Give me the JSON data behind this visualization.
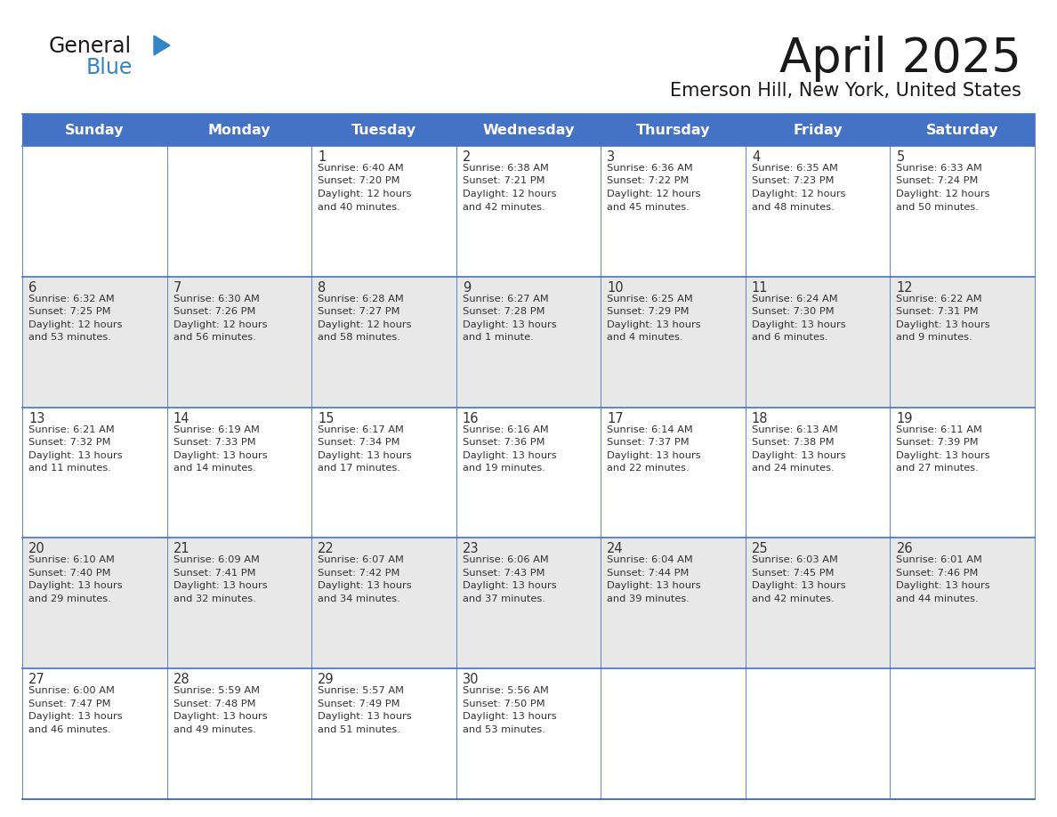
{
  "title": "April 2025",
  "subtitle": "Emerson Hill, New York, United States",
  "days_of_week": [
    "Sunday",
    "Monday",
    "Tuesday",
    "Wednesday",
    "Thursday",
    "Friday",
    "Saturday"
  ],
  "header_bg": "#4472C4",
  "header_text": "#FFFFFF",
  "odd_row_bg": "#FFFFFF",
  "even_row_bg": "#E8E8E8",
  "cell_text_color": "#333333",
  "day_num_color": "#333333",
  "grid_color": "#4472C4",
  "title_color": "#1a1a1a",
  "subtitle_color": "#1a1a1a",
  "logo_general_color": "#1a1a1a",
  "logo_blue_color": "#3385C6",
  "logo_triangle_color": "#3385C6",
  "calendar_data": [
    [
      {
        "day": "",
        "sunrise": "",
        "sunset": "",
        "daylight": ""
      },
      {
        "day": "",
        "sunrise": "",
        "sunset": "",
        "daylight": ""
      },
      {
        "day": "1",
        "sunrise": "Sunrise: 6:40 AM",
        "sunset": "Sunset: 7:20 PM",
        "daylight": "Daylight: 12 hours\nand 40 minutes."
      },
      {
        "day": "2",
        "sunrise": "Sunrise: 6:38 AM",
        "sunset": "Sunset: 7:21 PM",
        "daylight": "Daylight: 12 hours\nand 42 minutes."
      },
      {
        "day": "3",
        "sunrise": "Sunrise: 6:36 AM",
        "sunset": "Sunset: 7:22 PM",
        "daylight": "Daylight: 12 hours\nand 45 minutes."
      },
      {
        "day": "4",
        "sunrise": "Sunrise: 6:35 AM",
        "sunset": "Sunset: 7:23 PM",
        "daylight": "Daylight: 12 hours\nand 48 minutes."
      },
      {
        "day": "5",
        "sunrise": "Sunrise: 6:33 AM",
        "sunset": "Sunset: 7:24 PM",
        "daylight": "Daylight: 12 hours\nand 50 minutes."
      }
    ],
    [
      {
        "day": "6",
        "sunrise": "Sunrise: 6:32 AM",
        "sunset": "Sunset: 7:25 PM",
        "daylight": "Daylight: 12 hours\nand 53 minutes."
      },
      {
        "day": "7",
        "sunrise": "Sunrise: 6:30 AM",
        "sunset": "Sunset: 7:26 PM",
        "daylight": "Daylight: 12 hours\nand 56 minutes."
      },
      {
        "day": "8",
        "sunrise": "Sunrise: 6:28 AM",
        "sunset": "Sunset: 7:27 PM",
        "daylight": "Daylight: 12 hours\nand 58 minutes."
      },
      {
        "day": "9",
        "sunrise": "Sunrise: 6:27 AM",
        "sunset": "Sunset: 7:28 PM",
        "daylight": "Daylight: 13 hours\nand 1 minute."
      },
      {
        "day": "10",
        "sunrise": "Sunrise: 6:25 AM",
        "sunset": "Sunset: 7:29 PM",
        "daylight": "Daylight: 13 hours\nand 4 minutes."
      },
      {
        "day": "11",
        "sunrise": "Sunrise: 6:24 AM",
        "sunset": "Sunset: 7:30 PM",
        "daylight": "Daylight: 13 hours\nand 6 minutes."
      },
      {
        "day": "12",
        "sunrise": "Sunrise: 6:22 AM",
        "sunset": "Sunset: 7:31 PM",
        "daylight": "Daylight: 13 hours\nand 9 minutes."
      }
    ],
    [
      {
        "day": "13",
        "sunrise": "Sunrise: 6:21 AM",
        "sunset": "Sunset: 7:32 PM",
        "daylight": "Daylight: 13 hours\nand 11 minutes."
      },
      {
        "day": "14",
        "sunrise": "Sunrise: 6:19 AM",
        "sunset": "Sunset: 7:33 PM",
        "daylight": "Daylight: 13 hours\nand 14 minutes."
      },
      {
        "day": "15",
        "sunrise": "Sunrise: 6:17 AM",
        "sunset": "Sunset: 7:34 PM",
        "daylight": "Daylight: 13 hours\nand 17 minutes."
      },
      {
        "day": "16",
        "sunrise": "Sunrise: 6:16 AM",
        "sunset": "Sunset: 7:36 PM",
        "daylight": "Daylight: 13 hours\nand 19 minutes."
      },
      {
        "day": "17",
        "sunrise": "Sunrise: 6:14 AM",
        "sunset": "Sunset: 7:37 PM",
        "daylight": "Daylight: 13 hours\nand 22 minutes."
      },
      {
        "day": "18",
        "sunrise": "Sunrise: 6:13 AM",
        "sunset": "Sunset: 7:38 PM",
        "daylight": "Daylight: 13 hours\nand 24 minutes."
      },
      {
        "day": "19",
        "sunrise": "Sunrise: 6:11 AM",
        "sunset": "Sunset: 7:39 PM",
        "daylight": "Daylight: 13 hours\nand 27 minutes."
      }
    ],
    [
      {
        "day": "20",
        "sunrise": "Sunrise: 6:10 AM",
        "sunset": "Sunset: 7:40 PM",
        "daylight": "Daylight: 13 hours\nand 29 minutes."
      },
      {
        "day": "21",
        "sunrise": "Sunrise: 6:09 AM",
        "sunset": "Sunset: 7:41 PM",
        "daylight": "Daylight: 13 hours\nand 32 minutes."
      },
      {
        "day": "22",
        "sunrise": "Sunrise: 6:07 AM",
        "sunset": "Sunset: 7:42 PM",
        "daylight": "Daylight: 13 hours\nand 34 minutes."
      },
      {
        "day": "23",
        "sunrise": "Sunrise: 6:06 AM",
        "sunset": "Sunset: 7:43 PM",
        "daylight": "Daylight: 13 hours\nand 37 minutes."
      },
      {
        "day": "24",
        "sunrise": "Sunrise: 6:04 AM",
        "sunset": "Sunset: 7:44 PM",
        "daylight": "Daylight: 13 hours\nand 39 minutes."
      },
      {
        "day": "25",
        "sunrise": "Sunrise: 6:03 AM",
        "sunset": "Sunset: 7:45 PM",
        "daylight": "Daylight: 13 hours\nand 42 minutes."
      },
      {
        "day": "26",
        "sunrise": "Sunrise: 6:01 AM",
        "sunset": "Sunset: 7:46 PM",
        "daylight": "Daylight: 13 hours\nand 44 minutes."
      }
    ],
    [
      {
        "day": "27",
        "sunrise": "Sunrise: 6:00 AM",
        "sunset": "Sunset: 7:47 PM",
        "daylight": "Daylight: 13 hours\nand 46 minutes."
      },
      {
        "day": "28",
        "sunrise": "Sunrise: 5:59 AM",
        "sunset": "Sunset: 7:48 PM",
        "daylight": "Daylight: 13 hours\nand 49 minutes."
      },
      {
        "day": "29",
        "sunrise": "Sunrise: 5:57 AM",
        "sunset": "Sunset: 7:49 PM",
        "daylight": "Daylight: 13 hours\nand 51 minutes."
      },
      {
        "day": "30",
        "sunrise": "Sunrise: 5:56 AM",
        "sunset": "Sunset: 7:50 PM",
        "daylight": "Daylight: 13 hours\nand 53 minutes."
      },
      {
        "day": "",
        "sunrise": "",
        "sunset": "",
        "daylight": ""
      },
      {
        "day": "",
        "sunrise": "",
        "sunset": "",
        "daylight": ""
      },
      {
        "day": "",
        "sunrise": "",
        "sunset": "",
        "daylight": ""
      }
    ]
  ]
}
